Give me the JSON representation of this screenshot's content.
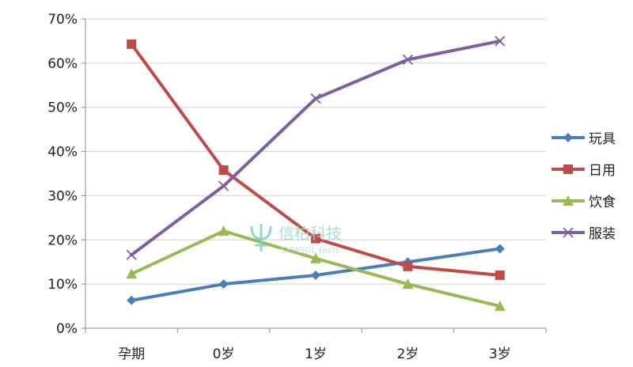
{
  "chart_data": {
    "type": "line",
    "categories": [
      "孕期",
      "0岁",
      "1岁",
      "2岁",
      "3岁"
    ],
    "series": [
      {
        "name": "玩具",
        "values": [
          6.3,
          10,
          12,
          15,
          18
        ],
        "color": "#4a7ebb",
        "marker": "diamond"
      },
      {
        "name": "日用",
        "values": [
          64.3,
          35.8,
          20.3,
          14,
          12
        ],
        "color": "#be4b48",
        "marker": "square"
      },
      {
        "name": "饮食",
        "values": [
          12.3,
          22,
          15.8,
          10,
          5
        ],
        "color": "#98b954",
        "marker": "triangle"
      },
      {
        "name": "服装",
        "values": [
          16.6,
          32.2,
          52,
          60.8,
          65
        ],
        "color": "#7d60a0",
        "marker": "x"
      }
    ],
    "y_ticks": [
      "0%",
      "10%",
      "20%",
      "30%",
      "40%",
      "50%",
      "60%",
      "70%"
    ],
    "ylim": [
      0,
      70
    ],
    "grid": true,
    "legend_position": "right",
    "title": "",
    "xlabel": "",
    "ylabel": ""
  },
  "watermark": {
    "text": "信柏科技",
    "sub": "SYMBOL.tech",
    "icon": "psi-icon"
  }
}
